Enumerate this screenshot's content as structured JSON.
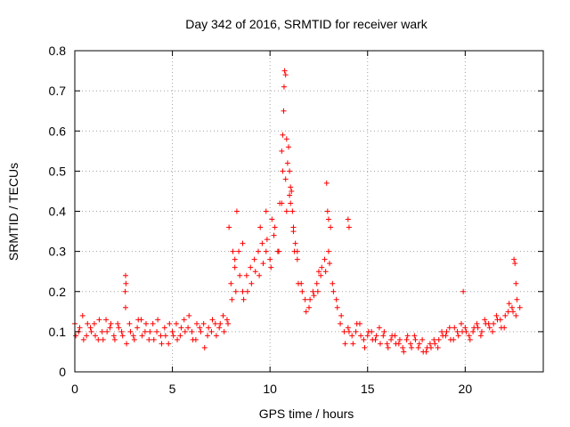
{
  "chart_data": {
    "type": "scatter",
    "title": "Day 342 of 2016, SRMTID for receiver wark",
    "xlabel": "GPS time / hours",
    "ylabel": "SRMTID / TECUs",
    "xlim": [
      0,
      24
    ],
    "ylim": [
      0,
      0.8
    ],
    "xticks": [
      0,
      5,
      10,
      15,
      20
    ],
    "xtick_labels": [
      "0",
      "5",
      "10",
      "15",
      "20"
    ],
    "yticks": [
      0,
      0.1,
      0.2,
      0.3,
      0.4,
      0.5,
      0.6,
      0.7,
      0.8
    ],
    "ytick_labels": [
      "0",
      "0.1",
      "0.2",
      "0.3",
      "0.4",
      "0.5",
      "0.6",
      "0.7",
      "0.8"
    ],
    "grid": true,
    "marker": "+",
    "color": "#ff0000",
    "series": [
      {
        "name": "SRMTID",
        "x": [
          0.0,
          0.2,
          0.4,
          0.6,
          0.8,
          1.0,
          1.2,
          1.4,
          1.6,
          1.8,
          2.0,
          2.2,
          2.4,
          2.6,
          2.8,
          3.0,
          3.2,
          3.4,
          3.6,
          3.8,
          4.0,
          4.2,
          4.4,
          4.6,
          4.8,
          5.0,
          5.2,
          5.4,
          5.6,
          5.8,
          6.0,
          6.2,
          6.4,
          6.6,
          6.8,
          7.0,
          7.2,
          7.4,
          7.6,
          7.8,
          8.0,
          8.2,
          8.4,
          8.6,
          8.8,
          9.0,
          9.2,
          9.4,
          9.6,
          9.8,
          10.0,
          10.2,
          10.4,
          10.6,
          10.8,
          11.0,
          11.2,
          11.4,
          11.6,
          11.8,
          12.0,
          12.2,
          12.4,
          12.6,
          12.8,
          13.0,
          13.2,
          13.4,
          13.6,
          13.8,
          14.0,
          14.2,
          14.4,
          14.6,
          14.8,
          15.0,
          15.2,
          15.4,
          15.6,
          15.8,
          16.0,
          16.2,
          16.4,
          16.6,
          16.8,
          17.0,
          17.2,
          17.4,
          17.6,
          17.8,
          18.0,
          18.2,
          18.4,
          18.6,
          18.8,
          19.0,
          19.2,
          19.4,
          19.6,
          19.8,
          20.0,
          20.2,
          20.4,
          20.6,
          20.8,
          21.0,
          21.2,
          21.4,
          21.6,
          21.8,
          22.0,
          22.2,
          22.4,
          22.6,
          22.8,
          0.05,
          0.25,
          0.45,
          0.65,
          0.85,
          1.05,
          1.25,
          1.45,
          1.65,
          1.85,
          2.05,
          2.25,
          2.45,
          2.65,
          2.85,
          3.05,
          3.25,
          3.45,
          3.65,
          3.85,
          4.05,
          4.25,
          4.45,
          4.65,
          4.85,
          5.05,
          5.25,
          5.45,
          5.65,
          5.85,
          6.05,
          6.25,
          6.45,
          6.65,
          6.85,
          7.05,
          7.25,
          7.45,
          7.65,
          7.85,
          8.05,
          8.25,
          8.45,
          8.65,
          8.85,
          9.05,
          9.25,
          9.45,
          9.65,
          9.85,
          10.05,
          10.25,
          10.45,
          10.65,
          10.85,
          11.05,
          11.25,
          11.45,
          11.65,
          11.85,
          12.05,
          12.25,
          12.45,
          12.65,
          12.85,
          13.05,
          13.25,
          13.45,
          13.65,
          13.85,
          14.05,
          14.25,
          14.45,
          14.65,
          14.85,
          15.05,
          15.25,
          15.45,
          15.65,
          15.85,
          16.05,
          16.25,
          16.45,
          16.65,
          16.85,
          17.05,
          17.25,
          17.45,
          17.65,
          17.85,
          18.05,
          18.25,
          18.45,
          18.65,
          18.85,
          19.05,
          19.25,
          19.45,
          19.65,
          19.85,
          20.05,
          20.25,
          20.45,
          20.65,
          20.85,
          21.05,
          21.25,
          21.45,
          21.65,
          21.85,
          22.05,
          22.25,
          22.45,
          22.65,
          2.6,
          2.62,
          2.58,
          7.9,
          8.1,
          8.2,
          8.3,
          8.6,
          9.5,
          9.8,
          10.1,
          10.5,
          10.6,
          10.65,
          10.7,
          10.72,
          10.75,
          10.8,
          10.85,
          10.9,
          10.95,
          11.0,
          11.05,
          11.1,
          11.15,
          11.2,
          11.3,
          11.4,
          12.5,
          12.9,
          12.95,
          13.0,
          13.1,
          14.0,
          14.05,
          19.9,
          22.5,
          22.55,
          22.6
        ],
        "y": [
          0.12,
          0.1,
          0.14,
          0.09,
          0.11,
          0.12,
          0.08,
          0.1,
          0.13,
          0.11,
          0.09,
          0.12,
          0.1,
          0.16,
          0.12,
          0.09,
          0.11,
          0.13,
          0.1,
          0.08,
          0.12,
          0.1,
          0.09,
          0.11,
          0.07,
          0.1,
          0.12,
          0.09,
          0.13,
          0.11,
          0.1,
          0.08,
          0.11,
          0.12,
          0.09,
          0.1,
          0.12,
          0.11,
          0.14,
          0.13,
          0.22,
          0.26,
          0.3,
          0.2,
          0.24,
          0.26,
          0.28,
          0.3,
          0.32,
          0.3,
          0.28,
          0.34,
          0.3,
          0.42,
          0.48,
          0.44,
          0.36,
          0.28,
          0.22,
          0.18,
          0.16,
          0.2,
          0.22,
          0.24,
          0.28,
          0.3,
          0.22,
          0.18,
          0.12,
          0.1,
          0.11,
          0.09,
          0.1,
          0.12,
          0.08,
          0.09,
          0.1,
          0.08,
          0.11,
          0.09,
          0.07,
          0.08,
          0.09,
          0.07,
          0.06,
          0.08,
          0.07,
          0.09,
          0.06,
          0.08,
          0.05,
          0.07,
          0.08,
          0.06,
          0.1,
          0.09,
          0.11,
          0.08,
          0.1,
          0.12,
          0.11,
          0.09,
          0.1,
          0.12,
          0.09,
          0.13,
          0.12,
          0.1,
          0.14,
          0.13,
          0.11,
          0.15,
          0.16,
          0.14,
          0.16,
          0.09,
          0.11,
          0.08,
          0.12,
          0.1,
          0.09,
          0.13,
          0.08,
          0.1,
          0.12,
          0.08,
          0.11,
          0.09,
          0.07,
          0.1,
          0.08,
          0.13,
          0.09,
          0.12,
          0.1,
          0.08,
          0.13,
          0.07,
          0.09,
          0.12,
          0.09,
          0.08,
          0.11,
          0.1,
          0.14,
          0.08,
          0.12,
          0.1,
          0.06,
          0.11,
          0.13,
          0.09,
          0.12,
          0.1,
          0.12,
          0.18,
          0.2,
          0.24,
          0.18,
          0.2,
          0.22,
          0.25,
          0.24,
          0.27,
          0.33,
          0.26,
          0.36,
          0.3,
          0.5,
          0.4,
          0.42,
          0.3,
          0.22,
          0.2,
          0.15,
          0.18,
          0.19,
          0.2,
          0.26,
          0.25,
          0.27,
          0.2,
          0.16,
          0.14,
          0.07,
          0.1,
          0.07,
          0.12,
          0.09,
          0.06,
          0.1,
          0.08,
          0.09,
          0.07,
          0.1,
          0.06,
          0.09,
          0.07,
          0.08,
          0.05,
          0.09,
          0.06,
          0.08,
          0.07,
          0.05,
          0.06,
          0.06,
          0.07,
          0.08,
          0.09,
          0.1,
          0.08,
          0.11,
          0.09,
          0.1,
          0.1,
          0.08,
          0.11,
          0.11,
          0.1,
          0.12,
          0.11,
          0.12,
          0.13,
          0.11,
          0.14,
          0.17,
          0.15,
          0.18,
          0.24,
          0.22,
          0.2,
          0.36,
          0.3,
          0.28,
          0.4,
          0.32,
          0.36,
          0.4,
          0.38,
          0.42,
          0.55,
          0.59,
          0.65,
          0.71,
          0.75,
          0.74,
          0.58,
          0.52,
          0.56,
          0.5,
          0.46,
          0.45,
          0.4,
          0.35,
          0.32,
          0.3,
          0.25,
          0.47,
          0.4,
          0.38,
          0.36,
          0.38,
          0.36,
          0.2,
          0.28,
          0.27,
          0.22
        ]
      }
    ]
  }
}
